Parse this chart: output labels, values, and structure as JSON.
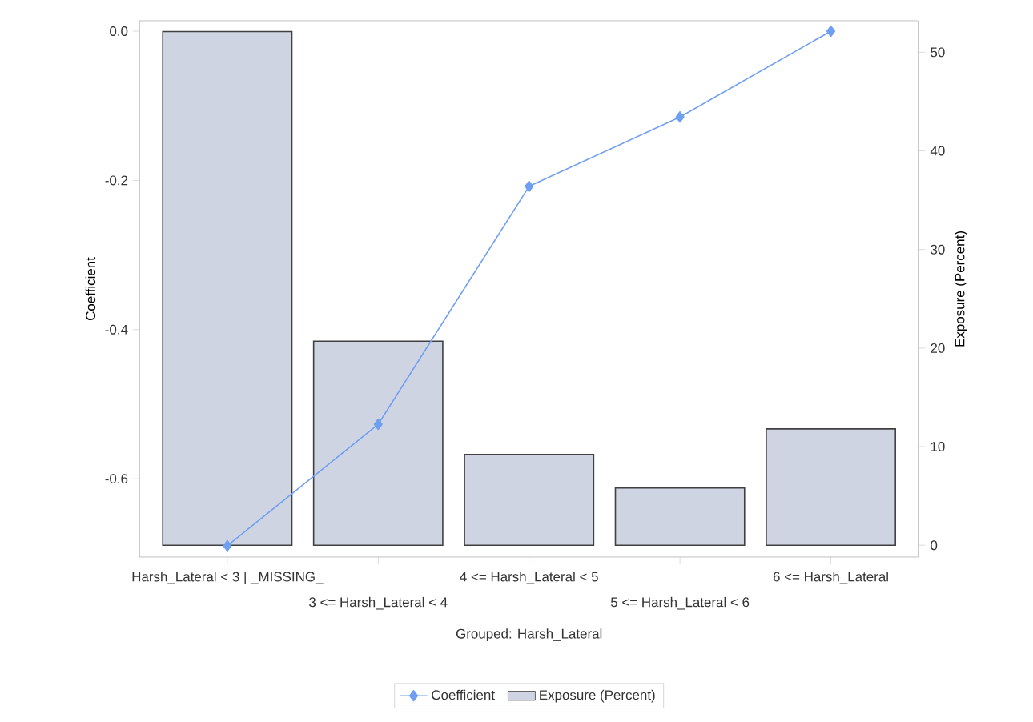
{
  "chart_data": {
    "type": "bar",
    "xlabel": "Grouped: Harsh_Lateral",
    "ylabel": "Coefficient",
    "y2label": "Exposure (Percent)",
    "categories": [
      "Harsh_Lateral < 3 | _MISSING_",
      "3 <= Harsh_Lateral < 4",
      "4 <= Harsh_Lateral < 5",
      "5 <= Harsh_Lateral < 6",
      "6 <= Harsh_Lateral"
    ],
    "series": [
      {
        "name": "Coefficient",
        "type": "line",
        "color": "#6f9ff0",
        "values": [
          -0.69,
          -0.527,
          -0.208,
          -0.115,
          0.0
        ]
      },
      {
        "name": "Exposure (Percent)",
        "axis": "y2",
        "color": "#cfd4e3",
        "values": [
          52.1,
          20.7,
          9.2,
          5.8,
          11.8
        ]
      }
    ],
    "ylim": [
      -0.705,
      0.014
    ],
    "yticks": [
      -0.6,
      -0.4,
      -0.2,
      {
        "value": 0,
        "label": "0.0"
      }
    ],
    "y2lim": [
      -1.2,
      53.2
    ],
    "y2ticks": [
      0,
      10,
      20,
      30,
      40,
      50
    ],
    "marker": "diamond",
    "legend": "bottom"
  }
}
